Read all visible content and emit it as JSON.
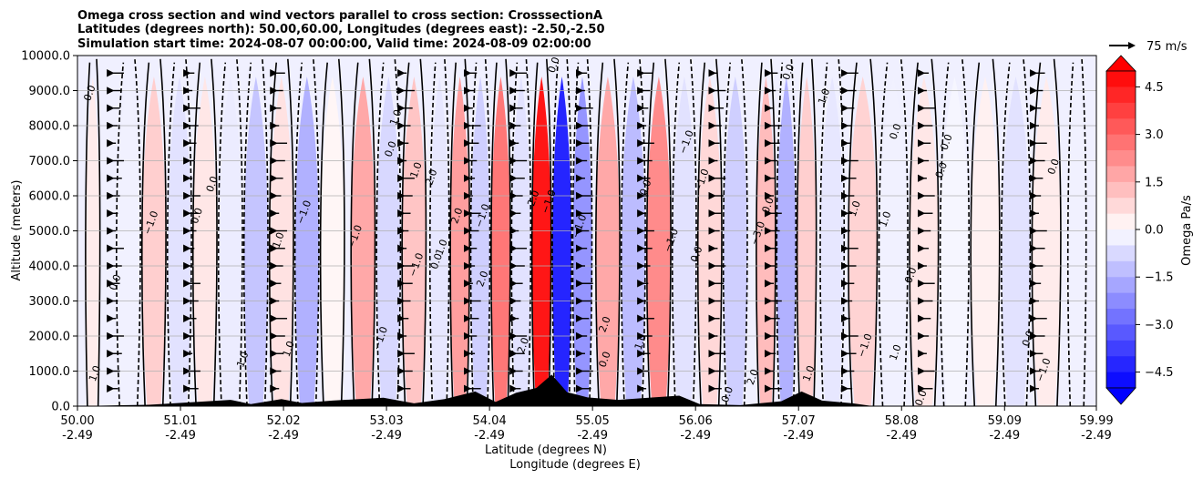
{
  "chart_data": {
    "type": "heatmap",
    "title_lines": [
      "Omega cross section and wind vectors parallel to cross section: CrosssectionA",
      "Latitudes (degrees north): 50.00,60.00, Longitudes (degrees east): -2.50,-2.50",
      "Simulation start time: 2024-08-07 00:00:00, Valid time: 2024-08-09 02:00:00"
    ],
    "ylabel": "Altitude (meters)",
    "xlabel_line1": "Latitude (degrees N)",
    "xlabel_line2": "Longitude (degrees E)",
    "ylim": [
      0,
      10000
    ],
    "yticks": [
      "0.0",
      "1000.0",
      "2000.0",
      "3000.0",
      "4000.0",
      "5000.0",
      "6000.0",
      "7000.0",
      "8000.0",
      "9000.0",
      "10000.0"
    ],
    "xticks": [
      {
        "lat": "50.00",
        "lon": "-2.49"
      },
      {
        "lat": "51.01",
        "lon": "-2.49"
      },
      {
        "lat": "52.02",
        "lon": "-2.49"
      },
      {
        "lat": "53.03",
        "lon": "-2.49"
      },
      {
        "lat": "54.04",
        "lon": "-2.49"
      },
      {
        "lat": "55.05",
        "lon": "-2.49"
      },
      {
        "lat": "56.06",
        "lon": "-2.49"
      },
      {
        "lat": "57.07",
        "lon": "-2.49"
      },
      {
        "lat": "58.08",
        "lon": "-2.49"
      },
      {
        "lat": "59.09",
        "lon": "-2.49"
      },
      {
        "lat": "59.99",
        "lon": "-2.49"
      }
    ],
    "colorbar": {
      "label": "Omega Pa/s",
      "range": [
        -5.0,
        5.0
      ],
      "ticks": [
        "4.5",
        "3.0",
        "1.5",
        "0.0",
        "−1.5",
        "−3.0",
        "−4.5"
      ],
      "high_color": "#ff0000",
      "low_color": "#0000ff",
      "neutral_color": "#ffffff"
    },
    "quiver_key": "75 m/s",
    "columns": [
      {
        "lat": 50.15,
        "value": 0.4
      },
      {
        "lat": 50.5,
        "value": -0.3
      },
      {
        "lat": 50.75,
        "value": 1.0
      },
      {
        "lat": 51.0,
        "value": -0.6
      },
      {
        "lat": 51.25,
        "value": 0.5
      },
      {
        "lat": 51.5,
        "value": -0.4
      },
      {
        "lat": 51.75,
        "value": -1.2
      },
      {
        "lat": 52.0,
        "value": 0.6
      },
      {
        "lat": 52.25,
        "value": -1.6
      },
      {
        "lat": 52.5,
        "value": 0.2
      },
      {
        "lat": 52.8,
        "value": 1.8
      },
      {
        "lat": 53.05,
        "value": -0.8
      },
      {
        "lat": 53.3,
        "value": 1.2
      },
      {
        "lat": 53.55,
        "value": -0.5
      },
      {
        "lat": 53.75,
        "value": 2.0
      },
      {
        "lat": 53.95,
        "value": -1.0
      },
      {
        "lat": 54.15,
        "value": 2.8
      },
      {
        "lat": 54.35,
        "value": -0.6
      },
      {
        "lat": 54.55,
        "value": 4.8
      },
      {
        "lat": 54.75,
        "value": -4.5
      },
      {
        "lat": 54.95,
        "value": -2.2
      },
      {
        "lat": 55.2,
        "value": 1.8
      },
      {
        "lat": 55.45,
        "value": -1.4
      },
      {
        "lat": 55.7,
        "value": 2.4
      },
      {
        "lat": 55.95,
        "value": -0.6
      },
      {
        "lat": 56.2,
        "value": 0.8
      },
      {
        "lat": 56.45,
        "value": -1.0
      },
      {
        "lat": 56.75,
        "value": 1.4
      },
      {
        "lat": 56.95,
        "value": -1.6
      },
      {
        "lat": 57.15,
        "value": 1.0
      },
      {
        "lat": 57.4,
        "value": -0.5
      },
      {
        "lat": 57.7,
        "value": 0.9
      },
      {
        "lat": 58.0,
        "value": -0.3
      },
      {
        "lat": 58.3,
        "value": 0.5
      },
      {
        "lat": 58.6,
        "value": -0.2
      },
      {
        "lat": 58.9,
        "value": 0.3
      },
      {
        "lat": 59.2,
        "value": -0.6
      },
      {
        "lat": 59.5,
        "value": 0.4
      },
      {
        "lat": 59.8,
        "value": -0.3
      }
    ],
    "contour_labels": [
      {
        "text": "0.0",
        "lat": 50.15,
        "alt": 8900
      },
      {
        "text": "1.0",
        "lat": 50.2,
        "alt": 900
      },
      {
        "text": "0.0",
        "lat": 50.4,
        "alt": 3500
      },
      {
        "text": "−1.0",
        "lat": 50.75,
        "alt": 5200
      },
      {
        "text": "0.0",
        "lat": 51.2,
        "alt": 5400
      },
      {
        "text": "0.0",
        "lat": 51.35,
        "alt": 6300
      },
      {
        "text": "1.0",
        "lat": 51.65,
        "alt": 1300
      },
      {
        "text": "1.0",
        "lat": 52.0,
        "alt": 4700
      },
      {
        "text": "−1.0",
        "lat": 52.25,
        "alt": 5500
      },
      {
        "text": "1.0",
        "lat": 52.1,
        "alt": 1600
      },
      {
        "text": "−1.0",
        "lat": 52.75,
        "alt": 4800
      },
      {
        "text": "0.0",
        "lat": 53.1,
        "alt": 7300
      },
      {
        "text": "1.0",
        "lat": 53.15,
        "alt": 8200
      },
      {
        "text": "1.0",
        "lat": 53.35,
        "alt": 6700
      },
      {
        "text": "−1.0",
        "lat": 53.35,
        "alt": 4000
      },
      {
        "text": "−1.0",
        "lat": 53.0,
        "alt": 1900
      },
      {
        "text": "2.0",
        "lat": 53.5,
        "alt": 6500
      },
      {
        "text": "2.0",
        "lat": 53.75,
        "alt": 5400
      },
      {
        "text": "0.0",
        "lat": 53.55,
        "alt": 4100
      },
      {
        "text": "1.0",
        "lat": 53.6,
        "alt": 4500
      },
      {
        "text": "−1.0",
        "lat": 54.0,
        "alt": 5400
      },
      {
        "text": "2.0",
        "lat": 54.0,
        "alt": 3600
      },
      {
        "text": "2.0",
        "lat": 54.4,
        "alt": 1700
      },
      {
        "text": "0.0",
        "lat": 54.7,
        "alt": 9700
      },
      {
        "text": "2.0",
        "lat": 54.5,
        "alt": 5900
      },
      {
        "text": "−1.0",
        "lat": 54.65,
        "alt": 5800
      },
      {
        "text": "−1.0",
        "lat": 54.95,
        "alt": 5100
      },
      {
        "text": "2.0",
        "lat": 55.2,
        "alt": 2300
      },
      {
        "text": "0.0",
        "lat": 55.2,
        "alt": 1300
      },
      {
        "text": "1.0",
        "lat": 55.55,
        "alt": 1800
      },
      {
        "text": "0.0",
        "lat": 55.6,
        "alt": 6200
      },
      {
        "text": "−1.0",
        "lat": 55.85,
        "alt": 4700
      },
      {
        "text": "−1.0",
        "lat": 56.0,
        "alt": 7500
      },
      {
        "text": "−1.0",
        "lat": 56.15,
        "alt": 6400
      },
      {
        "text": "0.0",
        "lat": 56.1,
        "alt": 4300
      },
      {
        "text": "0.0",
        "lat": 56.8,
        "alt": 5700
      },
      {
        "text": "−3.0",
        "lat": 56.7,
        "alt": 4900
      },
      {
        "text": "2.0",
        "lat": 56.65,
        "alt": 800
      },
      {
        "text": "0.0",
        "lat": 56.4,
        "alt": 300
      },
      {
        "text": "0.0",
        "lat": 57.0,
        "alt": 9500
      },
      {
        "text": "1.0",
        "lat": 57.2,
        "alt": 900
      },
      {
        "text": "1.0",
        "lat": 57.35,
        "alt": 8800
      },
      {
        "text": "1.0",
        "lat": 57.65,
        "alt": 5600
      },
      {
        "text": "1.0",
        "lat": 57.95,
        "alt": 5300
      },
      {
        "text": "0.0",
        "lat": 58.05,
        "alt": 7800
      },
      {
        "text": "0.0",
        "lat": 58.2,
        "alt": 3700
      },
      {
        "text": "−1.0",
        "lat": 57.75,
        "alt": 1700
      },
      {
        "text": "0.0",
        "lat": 58.55,
        "alt": 7500
      },
      {
        "text": "0.0",
        "lat": 58.5,
        "alt": 6700
      },
      {
        "text": "1.0",
        "lat": 58.05,
        "alt": 1500
      },
      {
        "text": "0.0",
        "lat": 59.35,
        "alt": 1900
      },
      {
        "text": "0.0",
        "lat": 59.6,
        "alt": 6800
      },
      {
        "text": "−1.0",
        "lat": 59.5,
        "alt": 1000
      },
      {
        "text": "0.0",
        "lat": 58.3,
        "alt": 200
      }
    ],
    "terrain": [
      {
        "lat": 50.0,
        "alt": 0
      },
      {
        "lat": 50.7,
        "alt": 40
      },
      {
        "lat": 51.0,
        "alt": 90
      },
      {
        "lat": 51.5,
        "alt": 180
      },
      {
        "lat": 51.7,
        "alt": 60
      },
      {
        "lat": 52.0,
        "alt": 200
      },
      {
        "lat": 52.2,
        "alt": 90
      },
      {
        "lat": 52.5,
        "alt": 160
      },
      {
        "lat": 53.0,
        "alt": 240
      },
      {
        "lat": 53.3,
        "alt": 80
      },
      {
        "lat": 53.6,
        "alt": 200
      },
      {
        "lat": 53.9,
        "alt": 420
      },
      {
        "lat": 54.1,
        "alt": 120
      },
      {
        "lat": 54.3,
        "alt": 380
      },
      {
        "lat": 54.5,
        "alt": 520
      },
      {
        "lat": 54.65,
        "alt": 900
      },
      {
        "lat": 54.8,
        "alt": 400
      },
      {
        "lat": 55.0,
        "alt": 250
      },
      {
        "lat": 55.3,
        "alt": 180
      },
      {
        "lat": 55.6,
        "alt": 240
      },
      {
        "lat": 55.9,
        "alt": 300
      },
      {
        "lat": 56.1,
        "alt": 60
      },
      {
        "lat": 56.5,
        "alt": 30
      },
      {
        "lat": 56.9,
        "alt": 140
      },
      {
        "lat": 57.1,
        "alt": 420
      },
      {
        "lat": 57.3,
        "alt": 160
      },
      {
        "lat": 57.6,
        "alt": 80
      },
      {
        "lat": 57.8,
        "alt": 0
      },
      {
        "lat": 59.99,
        "alt": 0
      }
    ]
  }
}
